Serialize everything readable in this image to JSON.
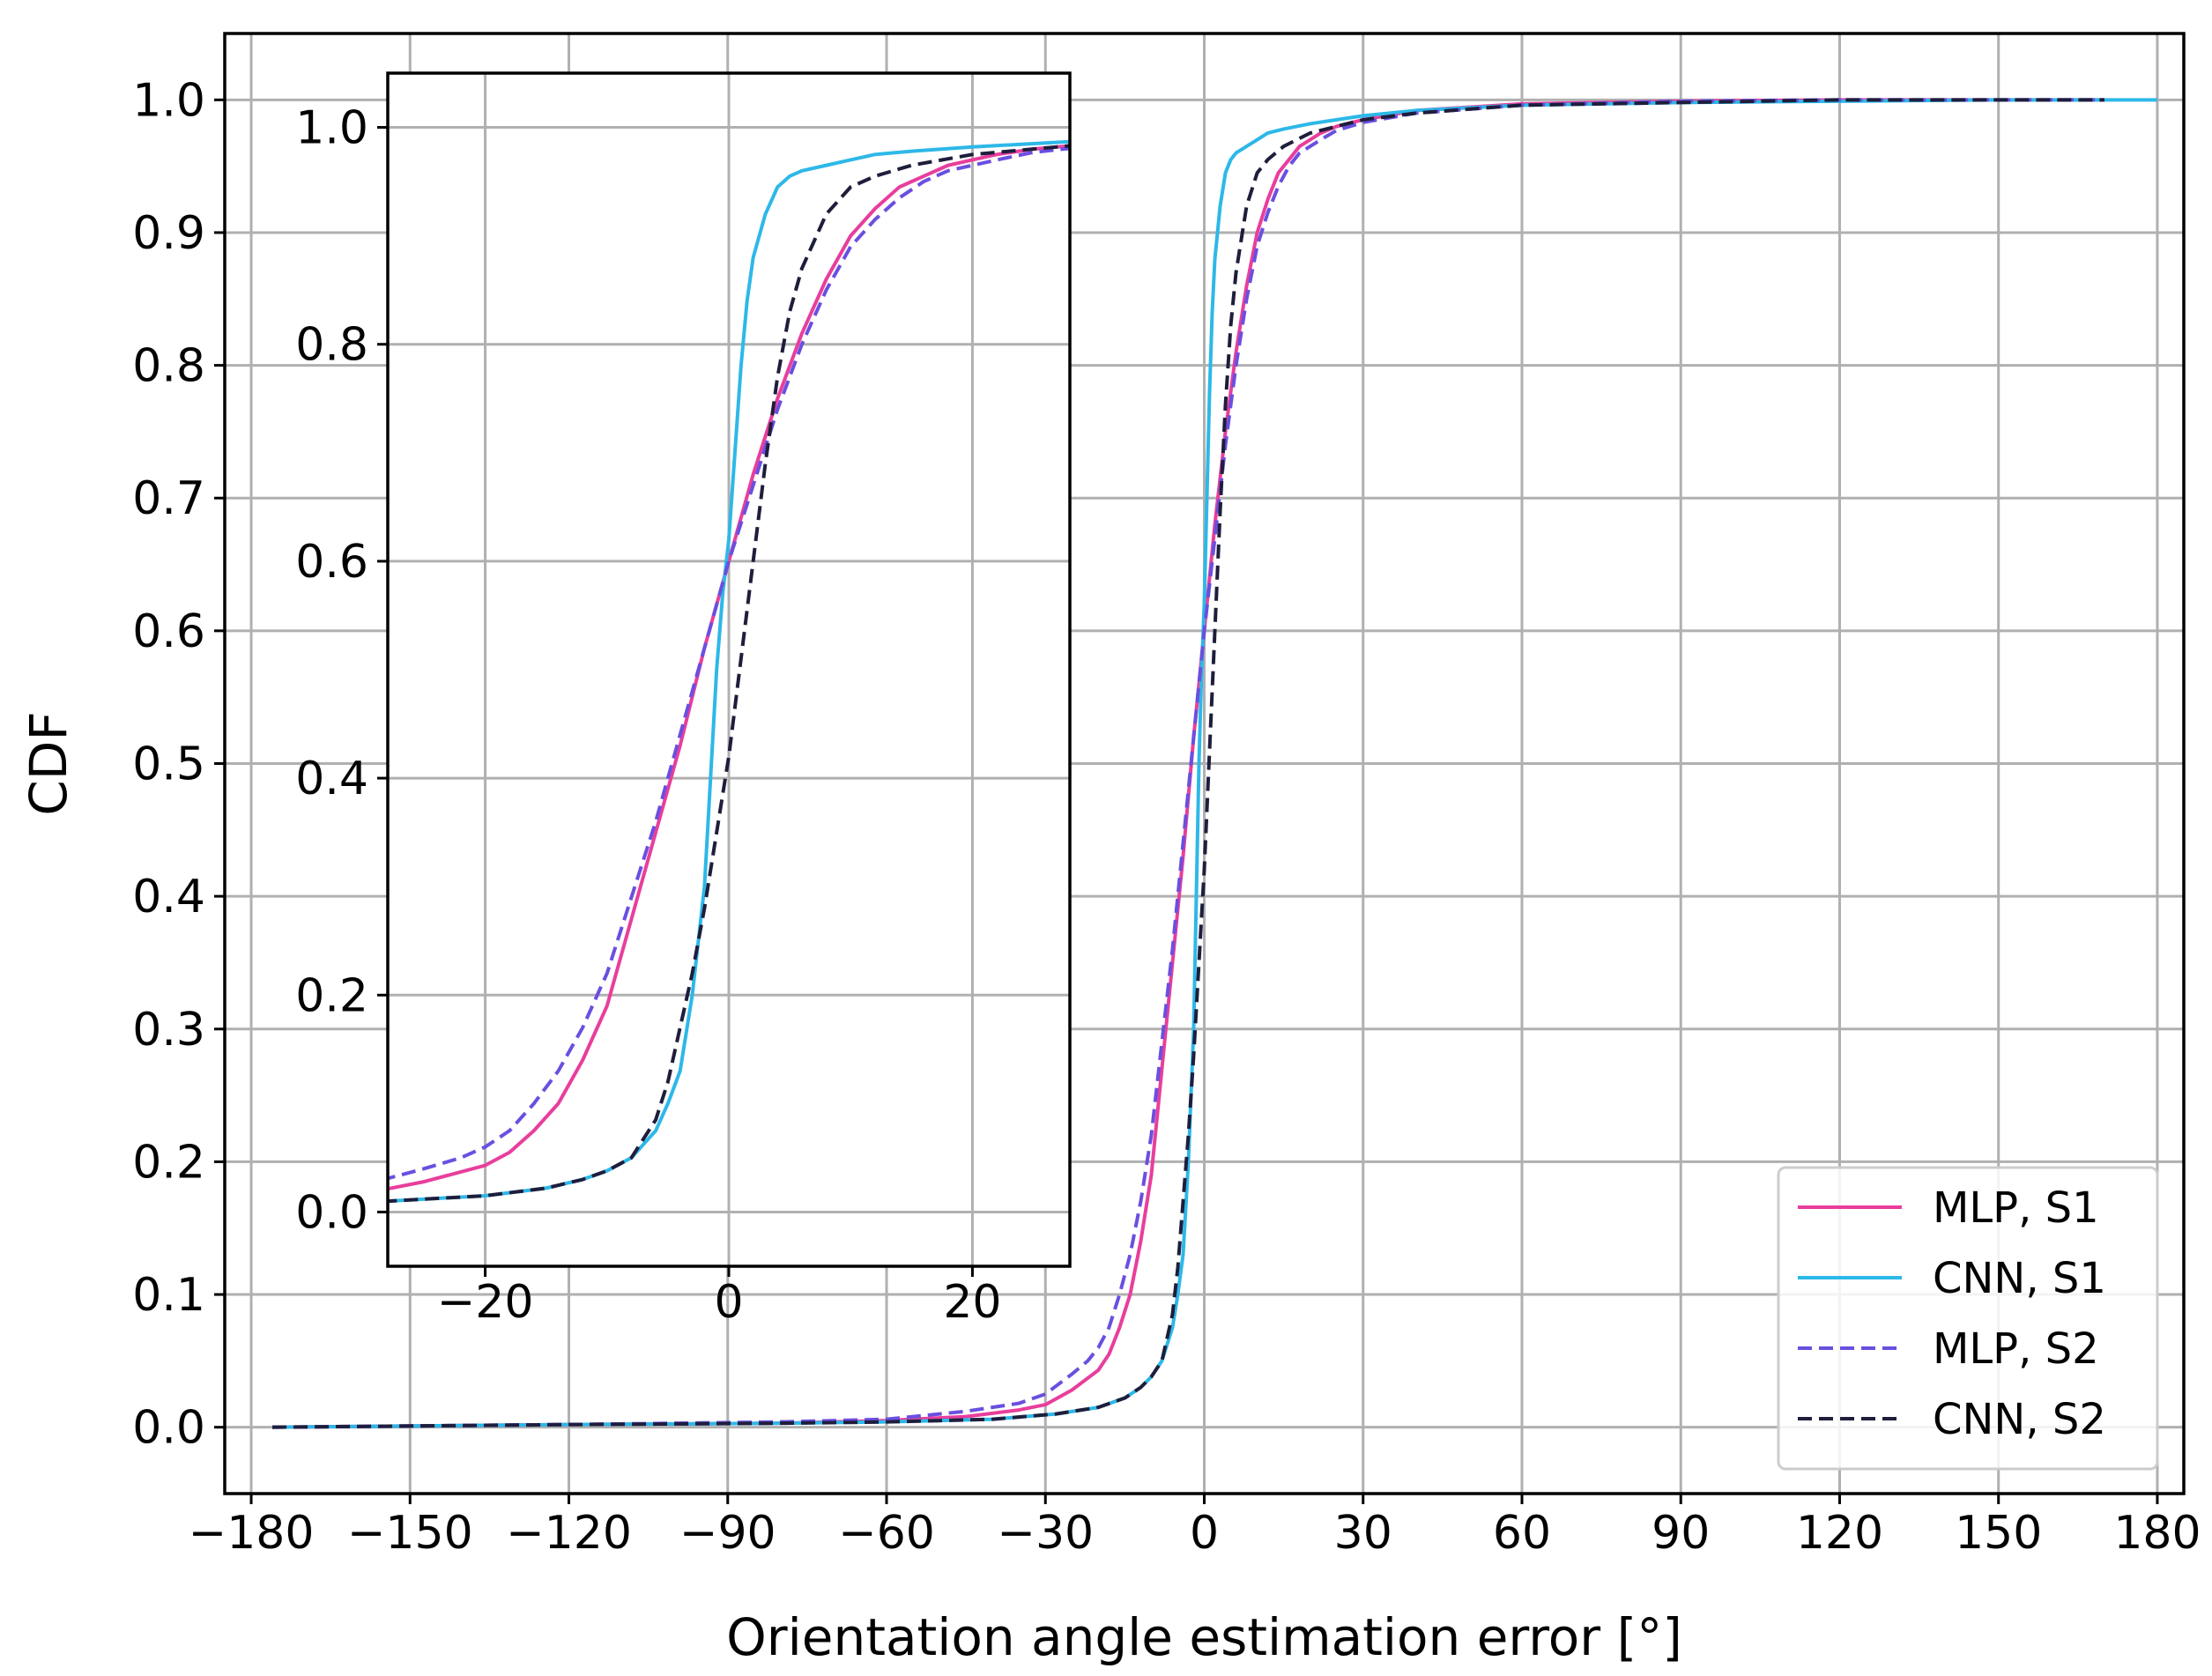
{
  "chart_data": {
    "type": "line",
    "main": {
      "xlabel": "Orientation angle estimation error  [°]",
      "ylabel": "CDF",
      "xlim": [
        -185,
        185
      ],
      "ylim": [
        -0.05,
        1.05
      ],
      "grid": true,
      "xticks": [
        -180,
        -150,
        -120,
        -90,
        -60,
        -30,
        0,
        30,
        60,
        90,
        120,
        150,
        180
      ],
      "xtick_labels": [
        "−180",
        "−150",
        "−120",
        "−90",
        "−60",
        "−30",
        "0",
        "30",
        "60",
        "90",
        "120",
        "150",
        "180"
      ],
      "yticks": [
        0.0,
        0.1,
        0.2,
        0.3,
        0.4,
        0.5,
        0.6,
        0.7,
        0.8,
        0.9,
        1.0
      ],
      "ytick_labels": [
        "0.0",
        "0.1",
        "0.2",
        "0.3",
        "0.4",
        "0.5",
        "0.6",
        "0.7",
        "0.8",
        "0.9",
        "1.0"
      ],
      "legend_position": "lower-right"
    },
    "inset": {
      "xlim": [
        -28,
        28
      ],
      "ylim": [
        -0.05,
        1.05
      ],
      "grid": true,
      "xticks": [
        -20,
        0,
        20
      ],
      "xtick_labels": [
        "−20",
        "0",
        "20"
      ],
      "yticks": [
        0.0,
        0.2,
        0.4,
        0.6,
        0.8,
        1.0
      ],
      "ytick_labels": [
        "0.0",
        "0.2",
        "0.4",
        "0.6",
        "0.8",
        "1.0"
      ]
    },
    "series": [
      {
        "name": "MLP, S1",
        "color": "#e83e9c",
        "dash": "solid",
        "x": [
          -176,
          -120,
          -80,
          -60,
          -45,
          -35,
          -30,
          -25,
          -22,
          -20,
          -18,
          -16,
          -14,
          -12,
          -10,
          -8,
          -6,
          -4,
          -2,
          0,
          2,
          4,
          6,
          8,
          10,
          12,
          14,
          16,
          18,
          20,
          22,
          25,
          30,
          40,
          60,
          90,
          120,
          150,
          170
        ],
        "y": [
          0.0,
          0.002,
          0.003,
          0.005,
          0.008,
          0.013,
          0.017,
          0.028,
          0.037,
          0.043,
          0.055,
          0.075,
          0.1,
          0.14,
          0.19,
          0.27,
          0.35,
          0.43,
          0.52,
          0.6,
          0.68,
          0.75,
          0.81,
          0.86,
          0.9,
          0.925,
          0.945,
          0.955,
          0.965,
          0.97,
          0.975,
          0.98,
          0.985,
          0.992,
          0.997,
          0.999,
          1.0,
          1.0,
          1.0
        ]
      },
      {
        "name": "CNN, S1",
        "color": "#2db8e8",
        "dash": "solid",
        "x": [
          -176,
          -120,
          -80,
          -60,
          -40,
          -28,
          -20,
          -15,
          -12,
          -10,
          -8,
          -6,
          -5,
          -4,
          -3,
          -2,
          -1.5,
          -1,
          -0.5,
          0,
          0.5,
          1,
          1.5,
          2,
          3,
          4,
          5,
          6,
          8,
          10,
          12,
          15,
          20,
          25,
          30,
          40,
          60,
          90,
          120,
          150,
          180
        ],
        "y": [
          0.0,
          0.002,
          0.003,
          0.004,
          0.006,
          0.01,
          0.015,
          0.022,
          0.03,
          0.038,
          0.05,
          0.075,
          0.1,
          0.13,
          0.2,
          0.3,
          0.4,
          0.5,
          0.57,
          0.62,
          0.7,
          0.78,
          0.84,
          0.88,
          0.92,
          0.945,
          0.955,
          0.96,
          0.965,
          0.97,
          0.975,
          0.978,
          0.982,
          0.985,
          0.988,
          0.992,
          0.996,
          0.998,
          0.999,
          1.0,
          1.0
        ]
      },
      {
        "name": "MLP, S2",
        "color": "#6a4fe0",
        "dash": "dashed",
        "x": [
          -176,
          -120,
          -80,
          -60,
          -45,
          -35,
          -30,
          -25,
          -22,
          -20,
          -18,
          -16,
          -14,
          -12,
          -10,
          -8,
          -6,
          -4,
          -2,
          0,
          2,
          4,
          6,
          8,
          10,
          12,
          14,
          16,
          18,
          20,
          22,
          25,
          30,
          40,
          60,
          90,
          120,
          150,
          170
        ],
        "y": [
          0.0,
          0.002,
          0.004,
          0.006,
          0.012,
          0.018,
          0.025,
          0.04,
          0.05,
          0.06,
          0.075,
          0.1,
          0.13,
          0.17,
          0.22,
          0.29,
          0.36,
          0.44,
          0.52,
          0.6,
          0.67,
          0.74,
          0.8,
          0.85,
          0.89,
          0.915,
          0.935,
          0.95,
          0.96,
          0.965,
          0.97,
          0.977,
          0.983,
          0.99,
          0.996,
          0.999,
          1.0,
          1.0,
          1.0
        ]
      },
      {
        "name": "CNN, S2",
        "color": "#1e1e3c",
        "dash": "dashed",
        "x": [
          -176,
          -120,
          -80,
          -60,
          -40,
          -28,
          -20,
          -15,
          -12,
          -10,
          -8,
          -6,
          -5,
          -4,
          -3,
          -2,
          -1,
          0,
          1,
          2,
          3,
          4,
          5,
          6,
          8,
          10,
          12,
          15,
          20,
          25,
          30,
          40,
          60,
          90,
          120,
          150,
          170
        ],
        "y": [
          0.0,
          0.002,
          0.003,
          0.004,
          0.006,
          0.01,
          0.015,
          0.022,
          0.03,
          0.038,
          0.05,
          0.085,
          0.12,
          0.17,
          0.22,
          0.28,
          0.35,
          0.42,
          0.51,
          0.6,
          0.69,
          0.77,
          0.83,
          0.87,
          0.92,
          0.945,
          0.955,
          0.965,
          0.975,
          0.98,
          0.985,
          0.99,
          0.996,
          0.998,
          1.0,
          1.0,
          1.0
        ]
      }
    ]
  }
}
